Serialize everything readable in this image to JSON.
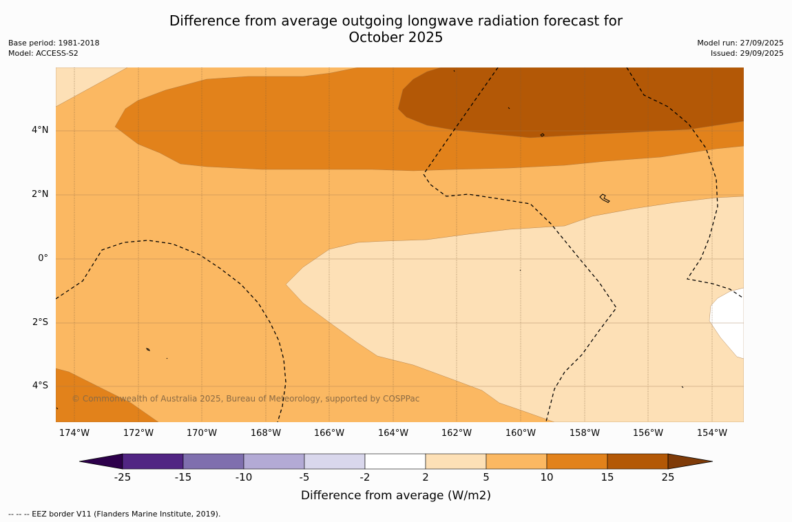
{
  "title_line1": "Difference from average outgoing longwave radiation forecast for",
  "title_line2": "October 2025",
  "base_period": "Base period: 1981-2018",
  "model": "Model: ACCESS-S2",
  "model_run": "Model run: 27/09/2025",
  "issued": "Issued: 29/09/2025",
  "copyright": "© Commonwealth of Australia 2025, Bureau of Meteorology, supported by COSPPac",
  "footer": "--  --  -- EEZ border V11 (Flanders Marine Institute, 2019).",
  "y_ticks": [
    "4°N",
    "2°N",
    "0°",
    "2°S",
    "4°S"
  ],
  "x_ticks": [
    "174°W",
    "172°W",
    "170°W",
    "168°W",
    "166°W",
    "164°W",
    "162°W",
    "160°W",
    "158°W",
    "156°W",
    "154°W"
  ],
  "colorbar": {
    "title": "Difference from average (W/m2)",
    "labels": [
      "-25",
      "-15",
      "-10",
      "-5",
      "-2",
      "2",
      "5",
      "10",
      "15",
      "25"
    ],
    "colors": [
      "#512583",
      "#7f6fae",
      "#b3aad5",
      "#d9d7ec",
      "#ffffff",
      "#fde0b6",
      "#fbb862",
      "#e2821b",
      "#b35806"
    ],
    "under_color": "#2d004b",
    "over_color": "#7f3b08"
  },
  "map_colors": {
    "c2_5": "#fde0b6",
    "c5_10": "#fbb862",
    "c10_15": "#e2821b",
    "c15_25": "#b35806",
    "below2": "#ffffff"
  }
}
